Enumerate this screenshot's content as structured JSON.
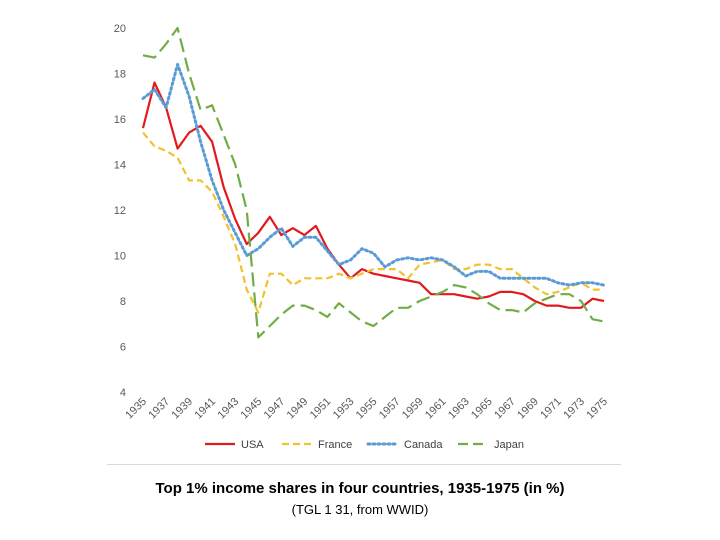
{
  "chart_data": {
    "type": "line",
    "title": "Top 1% income shares in four countries, 1935-1975 (in %)",
    "subtitle": "(TGL 1 31, from WWID)",
    "ylim": [
      4,
      20
    ],
    "yticks": [
      "20",
      "18",
      "16",
      "14",
      "12",
      "10",
      "8",
      "6",
      "4"
    ],
    "xlim": [
      1935,
      1975
    ],
    "xticks": [
      "1935",
      "1937",
      "1939",
      "1941",
      "1943",
      "1945",
      "1947",
      "1949",
      "1951",
      "1953",
      "1955",
      "1957",
      "1959",
      "1961",
      "1963",
      "1965",
      "1967",
      "1969",
      "1971",
      "1973",
      "1975"
    ],
    "grid": false,
    "legend": "bottom",
    "years": [
      1935,
      1936,
      1937,
      1938,
      1939,
      1940,
      1941,
      1942,
      1943,
      1944,
      1945,
      1946,
      1947,
      1948,
      1949,
      1950,
      1951,
      1952,
      1953,
      1954,
      1955,
      1956,
      1957,
      1958,
      1959,
      1960,
      1961,
      1962,
      1963,
      1964,
      1965,
      1966,
      1967,
      1968,
      1969,
      1970,
      1971,
      1972,
      1973,
      1974,
      1975
    ],
    "series": [
      {
        "name": "USA",
        "color": "#e31a1c",
        "dash": "solid",
        "values": [
          15.6,
          17.6,
          16.5,
          14.7,
          15.4,
          15.7,
          15.0,
          13.0,
          11.6,
          10.5,
          11.0,
          11.7,
          10.9,
          11.2,
          10.9,
          11.3,
          10.3,
          9.6,
          9.0,
          9.4,
          9.2,
          9.1,
          9.0,
          8.9,
          8.8,
          8.3,
          8.3,
          8.3,
          8.2,
          8.1,
          8.2,
          8.4,
          8.4,
          8.3,
          8.0,
          7.8,
          7.8,
          7.7,
          7.7,
          8.1,
          8.0
        ]
      },
      {
        "name": "France",
        "color": "#f2c12e",
        "dash": "dash",
        "values": [
          15.4,
          14.8,
          14.6,
          14.3,
          13.3,
          13.3,
          12.8,
          11.7,
          10.5,
          8.5,
          7.5,
          9.2,
          9.2,
          8.7,
          9.0,
          9.0,
          9.0,
          9.2,
          9.0,
          9.2,
          9.4,
          9.4,
          9.4,
          9.0,
          9.6,
          9.7,
          9.8,
          9.4,
          9.4,
          9.6,
          9.6,
          9.4,
          9.4,
          9.0,
          8.6,
          8.3,
          8.4,
          8.6,
          8.8,
          8.5,
          8.5
        ]
      },
      {
        "name": "Canada",
        "color": "#5b9bd5",
        "dash": "dot",
        "values": [
          16.9,
          17.3,
          16.5,
          18.4,
          17.0,
          15.0,
          13.3,
          12.0,
          11.0,
          10.0,
          10.3,
          10.8,
          11.2,
          10.4,
          10.8,
          10.8,
          10.2,
          9.6,
          9.8,
          10.3,
          10.1,
          9.5,
          9.8,
          9.9,
          9.8,
          9.9,
          9.8,
          9.5,
          9.1,
          9.3,
          9.3,
          9.0,
          9.0,
          9.0,
          9.0,
          9.0,
          8.8,
          8.7,
          8.8,
          8.8,
          8.7
        ]
      },
      {
        "name": "Japan",
        "color": "#70ad47",
        "dash": "longdash",
        "values": [
          18.8,
          18.7,
          19.3,
          20.0,
          18.0,
          16.4,
          16.6,
          15.3,
          14.0,
          12.0,
          6.4,
          6.9,
          7.4,
          7.8,
          7.8,
          7.6,
          7.3,
          7.9,
          7.5,
          7.1,
          6.9,
          7.3,
          7.7,
          7.7,
          8.0,
          8.2,
          8.4,
          8.7,
          8.6,
          8.3,
          7.9,
          7.6,
          7.6,
          7.5,
          7.9,
          8.1,
          8.3,
          8.3,
          8.0,
          7.2,
          7.1
        ]
      }
    ]
  }
}
